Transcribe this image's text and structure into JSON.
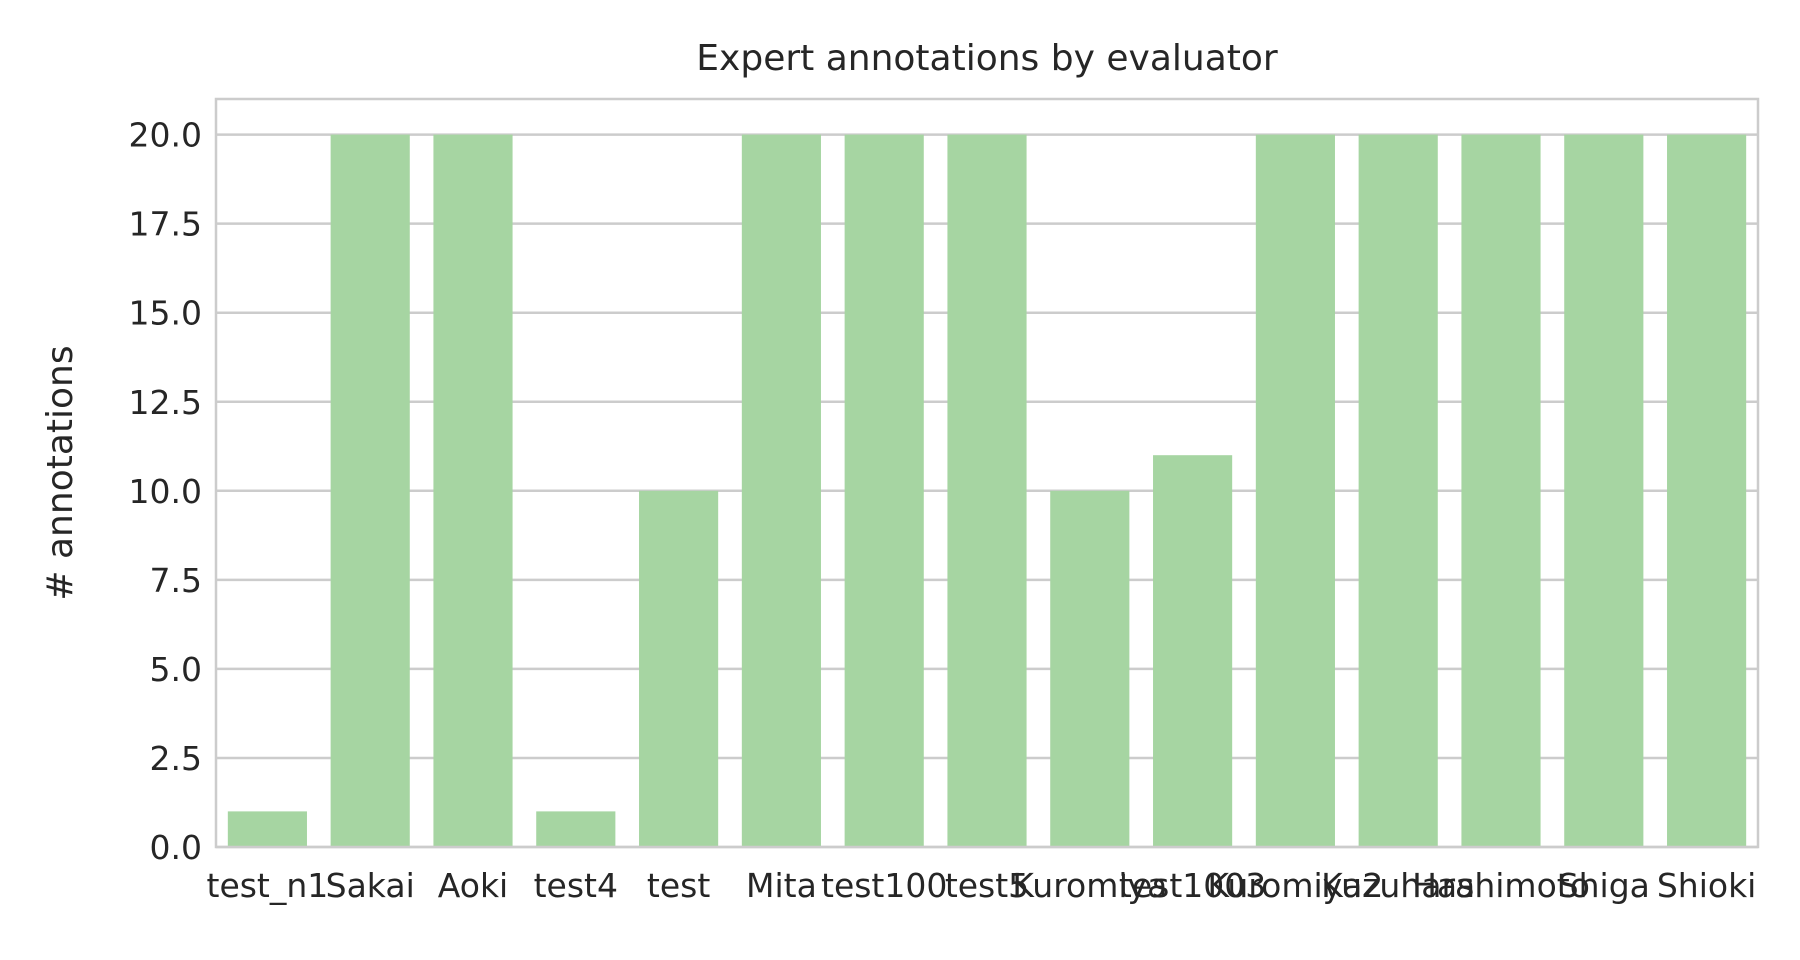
{
  "chart_data": {
    "type": "bar",
    "title": "Expert annotations by evaluator",
    "xlabel": "",
    "ylabel": "# annotations",
    "categories": [
      "test_n1",
      "Sakai",
      "Aoki",
      "test4",
      "test",
      "Mita",
      "test100",
      "test5",
      "Kuromiya",
      "test1003",
      "Kuromiya2",
      "Kuzuhara",
      "Hashimoto",
      "Shiga",
      "Shioki"
    ],
    "values": [
      1,
      20,
      20,
      1,
      10,
      20,
      20,
      20,
      10,
      11,
      20,
      20,
      20,
      20,
      20
    ],
    "ylim": [
      0,
      21
    ],
    "yticks": [
      "0.0",
      "2.5",
      "5.0",
      "7.5",
      "10.0",
      "12.5",
      "15.0",
      "17.5",
      "20.0"
    ],
    "grid": "horizontal",
    "legend": "none",
    "bar_color": "#a6d5a2",
    "grid_color": "#cccccc",
    "spine_color": "#cccccc"
  }
}
